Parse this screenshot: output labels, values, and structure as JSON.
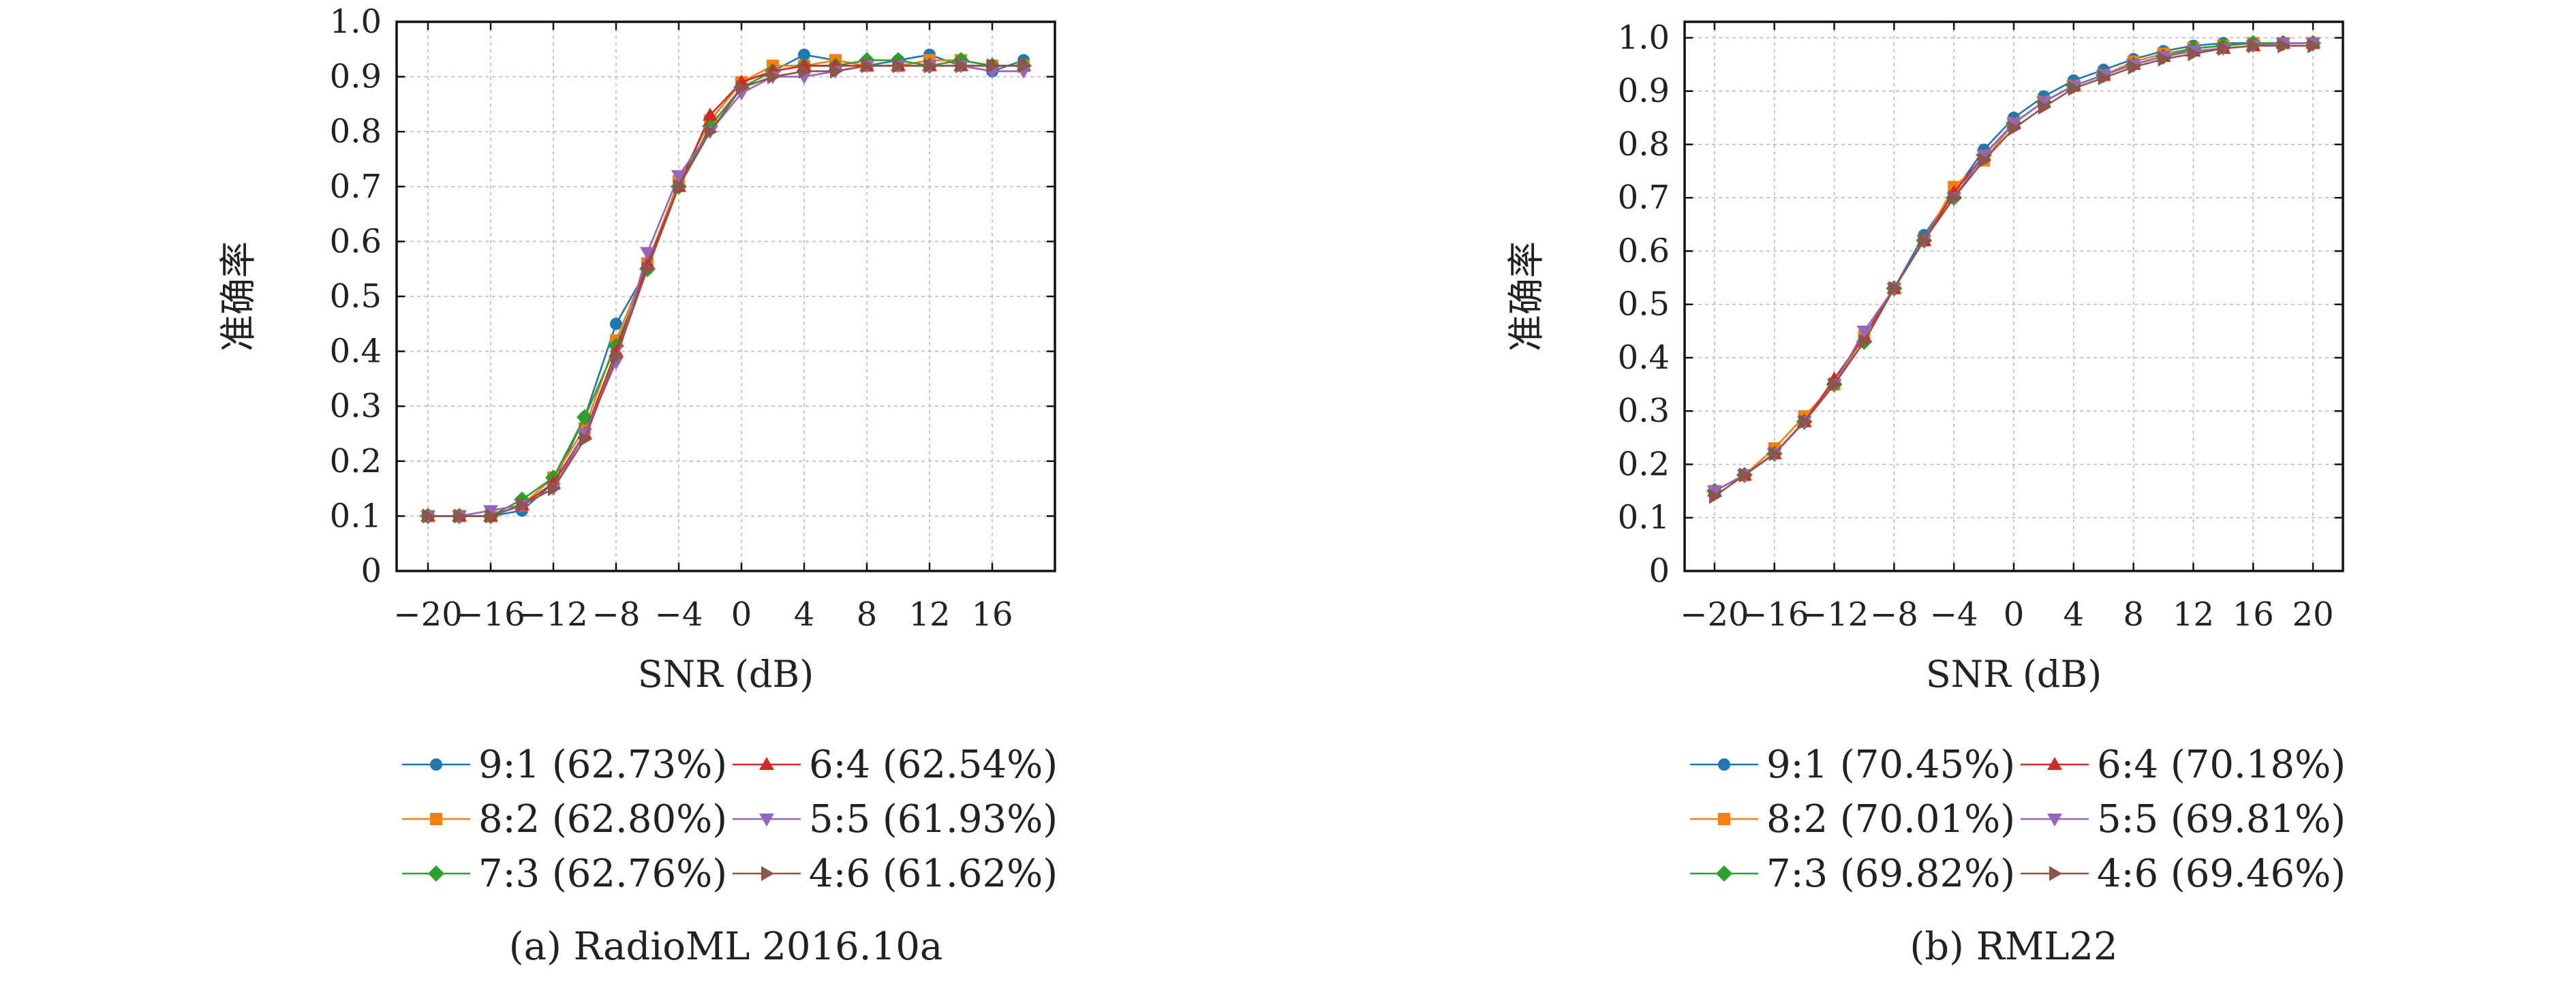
{
  "chart_data": [
    {
      "type": "line",
      "caption": "(a) RadioML 2016.10a",
      "xlabel": "SNR (dB)",
      "ylabel": "准确率",
      "xlim": [
        -22,
        20
      ],
      "ylim": [
        0,
        1.0
      ],
      "xticks": [
        -20,
        -16,
        -12,
        -8,
        -4,
        0,
        4,
        8,
        12,
        16
      ],
      "xtick_labels": [
        "−20",
        "−16",
        "−12",
        "−8",
        "−4",
        "0",
        "4",
        "8",
        "12",
        "16"
      ],
      "yticks": [
        0,
        0.1,
        0.2,
        0.3,
        0.4,
        0.5,
        0.6,
        0.7,
        0.8,
        0.9,
        1.0
      ],
      "ytick_labels": [
        "0",
        "0.1",
        "0.2",
        "0.3",
        "0.4",
        "0.5",
        "0.6",
        "0.7",
        "0.8",
        "0.9",
        "1.0"
      ],
      "grid": true,
      "legend_position": "below",
      "x": [
        -20,
        -18,
        -16,
        -14,
        -12,
        -10,
        -8,
        -6,
        -4,
        -2,
        0,
        2,
        4,
        6,
        8,
        10,
        12,
        14,
        16,
        18
      ],
      "series": [
        {
          "name": "9:1 (62.73%)",
          "values": [
            0.1,
            0.1,
            0.1,
            0.11,
            0.16,
            0.28,
            0.45,
            0.55,
            0.71,
            0.82,
            0.89,
            0.91,
            0.94,
            0.93,
            0.92,
            0.93,
            0.94,
            0.92,
            0.91,
            0.93
          ]
        },
        {
          "name": "8:2 (62.80%)",
          "values": [
            0.1,
            0.1,
            0.1,
            0.12,
            0.17,
            0.26,
            0.42,
            0.56,
            0.71,
            0.82,
            0.89,
            0.92,
            0.92,
            0.93,
            0.92,
            0.92,
            0.93,
            0.93,
            0.92,
            0.92
          ]
        },
        {
          "name": "7:3 (62.76%)",
          "values": [
            0.1,
            0.1,
            0.1,
            0.13,
            0.17,
            0.28,
            0.41,
            0.55,
            0.7,
            0.81,
            0.88,
            0.91,
            0.92,
            0.92,
            0.93,
            0.93,
            0.92,
            0.93,
            0.92,
            0.92
          ]
        },
        {
          "name": "6:4 (62.54%)",
          "values": [
            0.1,
            0.1,
            0.1,
            0.12,
            0.16,
            0.25,
            0.4,
            0.56,
            0.7,
            0.83,
            0.89,
            0.91,
            0.92,
            0.92,
            0.92,
            0.92,
            0.92,
            0.92,
            0.92,
            0.92
          ]
        },
        {
          "name": "5:5 (61.93%)",
          "values": [
            0.1,
            0.1,
            0.11,
            0.12,
            0.15,
            0.25,
            0.38,
            0.58,
            0.72,
            0.8,
            0.87,
            0.9,
            0.9,
            0.91,
            0.92,
            0.92,
            0.92,
            0.92,
            0.91,
            0.91
          ]
        },
        {
          "name": "4:6 (61.62%)",
          "values": [
            0.1,
            0.1,
            0.1,
            0.12,
            0.15,
            0.24,
            0.39,
            0.55,
            0.7,
            0.8,
            0.88,
            0.9,
            0.91,
            0.91,
            0.92,
            0.92,
            0.92,
            0.92,
            0.92,
            0.92
          ]
        }
      ]
    },
    {
      "type": "line",
      "caption": "(b) RML22",
      "xlabel": "SNR (dB)",
      "ylabel": "准确率",
      "xlim": [
        -22,
        22
      ],
      "ylim": [
        0,
        1.03
      ],
      "xticks": [
        -20,
        -16,
        -12,
        -8,
        -4,
        0,
        4,
        8,
        12,
        16,
        20
      ],
      "xtick_labels": [
        "−20",
        "−16",
        "−12",
        "−8",
        "−4",
        "0",
        "4",
        "8",
        "12",
        "16",
        "20"
      ],
      "yticks": [
        0,
        0.1,
        0.2,
        0.3,
        0.4,
        0.5,
        0.6,
        0.7,
        0.8,
        0.9,
        1.0
      ],
      "ytick_labels": [
        "0",
        "0.1",
        "0.2",
        "0.3",
        "0.4",
        "0.5",
        "0.6",
        "0.7",
        "0.8",
        "0.9",
        "1.0"
      ],
      "grid": true,
      "legend_position": "below",
      "x": [
        -20,
        -18,
        -16,
        -14,
        -12,
        -10,
        -8,
        -6,
        -4,
        -2,
        0,
        2,
        4,
        6,
        8,
        10,
        12,
        14,
        16,
        18,
        20
      ],
      "series": [
        {
          "name": "9:1 (70.45%)",
          "values": [
            0.15,
            0.18,
            0.22,
            0.28,
            0.35,
            0.44,
            0.53,
            0.63,
            0.71,
            0.79,
            0.85,
            0.89,
            0.92,
            0.94,
            0.96,
            0.975,
            0.985,
            0.99,
            0.99,
            0.99,
            0.99
          ]
        },
        {
          "name": "8:2 (70.01%)",
          "values": [
            0.15,
            0.18,
            0.23,
            0.29,
            0.35,
            0.44,
            0.53,
            0.62,
            0.72,
            0.77,
            0.84,
            0.88,
            0.91,
            0.93,
            0.955,
            0.97,
            0.98,
            0.985,
            0.99,
            0.99,
            0.99
          ]
        },
        {
          "name": "7:3 (69.82%)",
          "values": [
            0.15,
            0.18,
            0.22,
            0.28,
            0.35,
            0.43,
            0.53,
            0.62,
            0.7,
            0.78,
            0.84,
            0.88,
            0.91,
            0.93,
            0.95,
            0.965,
            0.98,
            0.985,
            0.99,
            0.99,
            0.99
          ]
        },
        {
          "name": "6:4 (70.18%)",
          "values": [
            0.15,
            0.18,
            0.22,
            0.28,
            0.36,
            0.44,
            0.53,
            0.62,
            0.71,
            0.78,
            0.84,
            0.88,
            0.91,
            0.93,
            0.95,
            0.965,
            0.975,
            0.98,
            0.985,
            0.99,
            0.99
          ]
        },
        {
          "name": "5:5 (69.81%)",
          "values": [
            0.15,
            0.18,
            0.22,
            0.28,
            0.35,
            0.45,
            0.53,
            0.62,
            0.7,
            0.78,
            0.84,
            0.88,
            0.91,
            0.93,
            0.95,
            0.965,
            0.975,
            0.98,
            0.985,
            0.99,
            0.99
          ]
        },
        {
          "name": "4:6 (69.46%)",
          "values": [
            0.14,
            0.18,
            0.22,
            0.28,
            0.35,
            0.43,
            0.53,
            0.62,
            0.7,
            0.77,
            0.83,
            0.87,
            0.905,
            0.925,
            0.945,
            0.96,
            0.97,
            0.98,
            0.985,
            0.985,
            0.985
          ]
        }
      ]
    }
  ],
  "series_colors": [
    "#1f77b4",
    "#ff7f0e",
    "#2ca02c",
    "#d62728",
    "#9467bd",
    "#8c564b"
  ],
  "series_markers": [
    "circle",
    "square",
    "diamond",
    "triangle-up",
    "triangle-down",
    "triangle-right"
  ]
}
